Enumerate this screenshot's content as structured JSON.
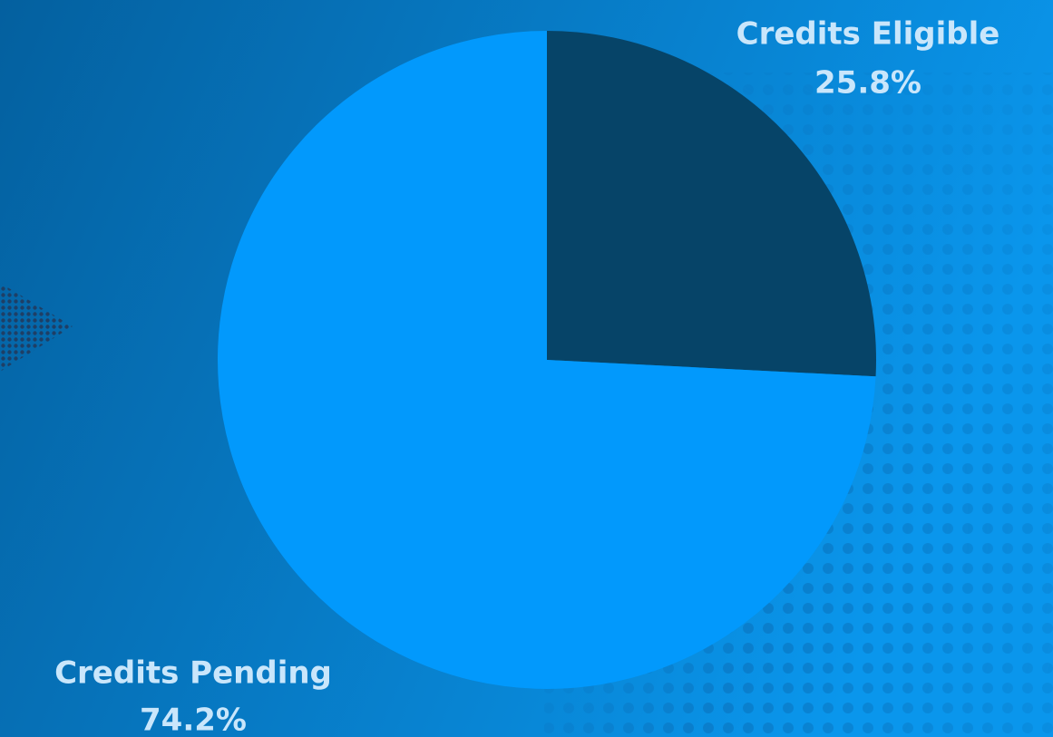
{
  "chart_data": {
    "type": "pie",
    "categories": [
      "Credits Eligible",
      "Credits Pending"
    ],
    "values": [
      25.8,
      74.2
    ],
    "value_labels": [
      "25.8%",
      "74.2%"
    ],
    "colors": [
      "#064468",
      "#0299fc"
    ]
  }
}
